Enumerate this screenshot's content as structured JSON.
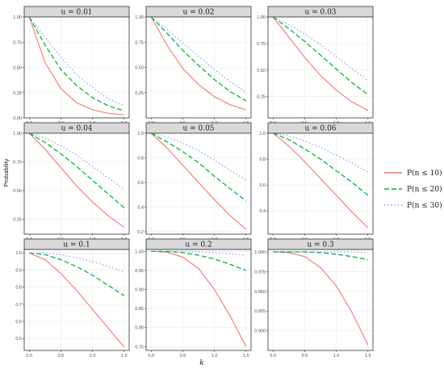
{
  "colors": {
    "series_1": "#F8766D",
    "series_2": "#00BA38",
    "series_3": "#619CFF",
    "strip_bg": "#D9D9D9",
    "strip_border": "#333333",
    "grid": "#EBEBEB",
    "panel_border": "#333333"
  },
  "chart_data": {
    "type": "line",
    "layout": "facet-grid-3x3",
    "xlabel": "k",
    "ylabel": "Probability",
    "legend_position": "right",
    "legend": [
      {
        "label": "P(n ≤ 10)",
        "linetype": "solid"
      },
      {
        "label": "P(n ≤ 20)",
        "linetype": "dashed"
      },
      {
        "label": "P(n ≤ 30)",
        "linetype": "dotted"
      }
    ],
    "x": [
      0,
      0.25,
      0.5,
      0.75,
      1.0,
      1.25,
      1.5
    ],
    "x_ticks": [
      0,
      0.5,
      1,
      1.5
    ],
    "x_tick_labels": [
      "0.0",
      "0.5",
      "1.0",
      "1.5"
    ],
    "grid": true,
    "panels": [
      {
        "title": "u = 0.01",
        "ylim": [
          0,
          1.0
        ],
        "y_ticks": [
          0,
          0.25,
          0.5,
          0.75,
          1.0
        ],
        "y_tick_labels": [
          "0.00",
          "0.25",
          "0.50",
          "0.75",
          "1.00"
        ],
        "series": [
          {
            "values": [
              1.0,
              0.55,
              0.29,
              0.15,
              0.08,
              0.045,
              0.03
            ]
          },
          {
            "values": [
              1.0,
              0.72,
              0.48,
              0.32,
              0.2,
              0.12,
              0.07
            ]
          },
          {
            "values": [
              1.0,
              0.8,
              0.6,
              0.43,
              0.3,
              0.19,
              0.12
            ]
          }
        ]
      },
      {
        "title": "u = 0.02",
        "ylim": [
          0,
          1.0
        ],
        "y_ticks": [
          0.25,
          0.5,
          0.75,
          1.0
        ],
        "y_tick_labels": [
          "0.25",
          "0.50",
          "0.75",
          "1.00"
        ],
        "series": [
          {
            "values": [
              1.0,
              0.72,
              0.49,
              0.33,
              0.21,
              0.13,
              0.08
            ]
          },
          {
            "values": [
              1.0,
              0.84,
              0.67,
              0.52,
              0.38,
              0.26,
              0.17
            ]
          },
          {
            "values": [
              1.0,
              0.88,
              0.74,
              0.61,
              0.48,
              0.36,
              0.25
            ]
          }
        ]
      },
      {
        "title": "u = 0.03",
        "ylim": [
          0.05,
          1.0
        ],
        "y_ticks": [
          0.25,
          0.5,
          0.75,
          1.0
        ],
        "y_tick_labels": [
          "0.25",
          "0.50",
          "0.75",
          "1.00"
        ],
        "series": [
          {
            "values": [
              1.0,
              0.81,
              0.62,
              0.45,
              0.31,
              0.2,
              0.12
            ]
          },
          {
            "values": [
              1.0,
              0.89,
              0.77,
              0.64,
              0.51,
              0.38,
              0.27
            ]
          },
          {
            "values": [
              1.0,
              0.93,
              0.84,
              0.74,
              0.63,
              0.51,
              0.4
            ]
          }
        ]
      },
      {
        "title": "u = 0.04",
        "ylim": [
          0.12,
          1.0
        ],
        "y_ticks": [
          0.25,
          0.5,
          0.75,
          1.0
        ],
        "y_tick_labels": [
          "0.25",
          "0.50",
          "0.75",
          "1.00"
        ],
        "series": [
          {
            "values": [
              1.0,
              0.86,
              0.7,
              0.54,
              0.4,
              0.28,
              0.18
            ]
          },
          {
            "values": [
              1.0,
              0.92,
              0.82,
              0.71,
              0.59,
              0.47,
              0.35
            ]
          },
          {
            "values": [
              1.0,
              0.96,
              0.89,
              0.81,
              0.71,
              0.61,
              0.51
            ]
          }
        ]
      },
      {
        "title": "u = 0.05",
        "ylim": [
          0.18,
          1.0
        ],
        "y_ticks": [
          0.2,
          0.4,
          0.6,
          0.8,
          1.0
        ],
        "y_tick_labels": [
          "0.2",
          "0.4",
          "0.6",
          "0.8",
          "1.0"
        ],
        "series": [
          {
            "values": [
              1.0,
              0.88,
              0.74,
              0.6,
              0.46,
              0.33,
              0.22
            ]
          },
          {
            "values": [
              1.0,
              0.93,
              0.85,
              0.76,
              0.65,
              0.55,
              0.45
            ]
          },
          {
            "values": [
              1.0,
              0.97,
              0.92,
              0.86,
              0.78,
              0.7,
              0.62
            ]
          }
        ]
      },
      {
        "title": "u = 0.06",
        "ylim": [
          0.22,
          1.0
        ],
        "y_ticks": [
          0.4,
          0.6,
          0.8,
          1.0
        ],
        "y_tick_labels": [
          "0.4",
          "0.6",
          "0.8",
          "1.0"
        ],
        "series": [
          {
            "values": [
              1.0,
              0.9,
              0.78,
              0.65,
              0.52,
              0.39,
              0.27
            ]
          },
          {
            "values": [
              1.0,
              0.95,
              0.88,
              0.8,
              0.71,
              0.62,
              0.52
            ]
          },
          {
            "values": [
              1.0,
              0.98,
              0.94,
              0.89,
              0.83,
              0.77,
              0.7
            ]
          }
        ]
      },
      {
        "title": "u = 0.1",
        "ylim": [
          0.43,
          1.02
        ],
        "y_ticks": [
          0.5,
          0.6,
          0.7,
          0.8,
          0.9,
          1.0
        ],
        "y_tick_labels": [
          "0.5",
          "0.6",
          "0.7",
          "0.8",
          "0.9",
          "1.0"
        ],
        "series": [
          {
            "values": [
              1.0,
              0.96,
              0.88,
              0.78,
              0.67,
              0.56,
              0.45
            ]
          },
          {
            "values": [
              1.0,
              0.99,
              0.96,
              0.92,
              0.87,
              0.81,
              0.75
            ]
          },
          {
            "values": [
              1.0,
              1.0,
              0.99,
              0.97,
              0.95,
              0.92,
              0.89
            ]
          }
        ]
      },
      {
        "title": "u = 0.2",
        "ylim": [
          0.74,
          1.005
        ],
        "y_ticks": [
          0.75,
          0.8,
          0.85,
          0.9,
          0.95,
          1.0
        ],
        "y_tick_labels": [
          "0.75",
          "0.80",
          "0.85",
          "0.90",
          "0.95",
          "1.00"
        ],
        "series": [
          {
            "values": [
              1.0,
              0.998,
              0.985,
              0.955,
              0.9,
              0.83,
              0.75
            ]
          },
          {
            "values": [
              1.0,
              1.0,
              0.997,
              0.99,
              0.98,
              0.966,
              0.95
            ]
          },
          {
            "values": [
              1.0,
              1.0,
              1.0,
              0.999,
              0.997,
              0.994,
              0.99
            ]
          }
        ]
      },
      {
        "title": "u = 0.3",
        "ylim": [
          0.875,
          1.003
        ],
        "y_ticks": [
          0.9,
          0.925,
          0.95,
          0.975,
          1.0
        ],
        "y_tick_labels": [
          "0.900",
          "0.925",
          "0.950",
          "0.975",
          "1.000"
        ],
        "series": [
          {
            "values": [
              1.0,
              0.999,
              0.994,
              0.98,
              0.957,
              0.923,
              0.882
            ]
          },
          {
            "values": [
              1.0,
              1.0,
              1.0,
              0.999,
              0.997,
              0.994,
              0.99
            ]
          },
          {
            "values": [
              1.0,
              1.0,
              1.0,
              1.0,
              1.0,
              1.0,
              0.999
            ]
          }
        ]
      }
    ]
  }
}
